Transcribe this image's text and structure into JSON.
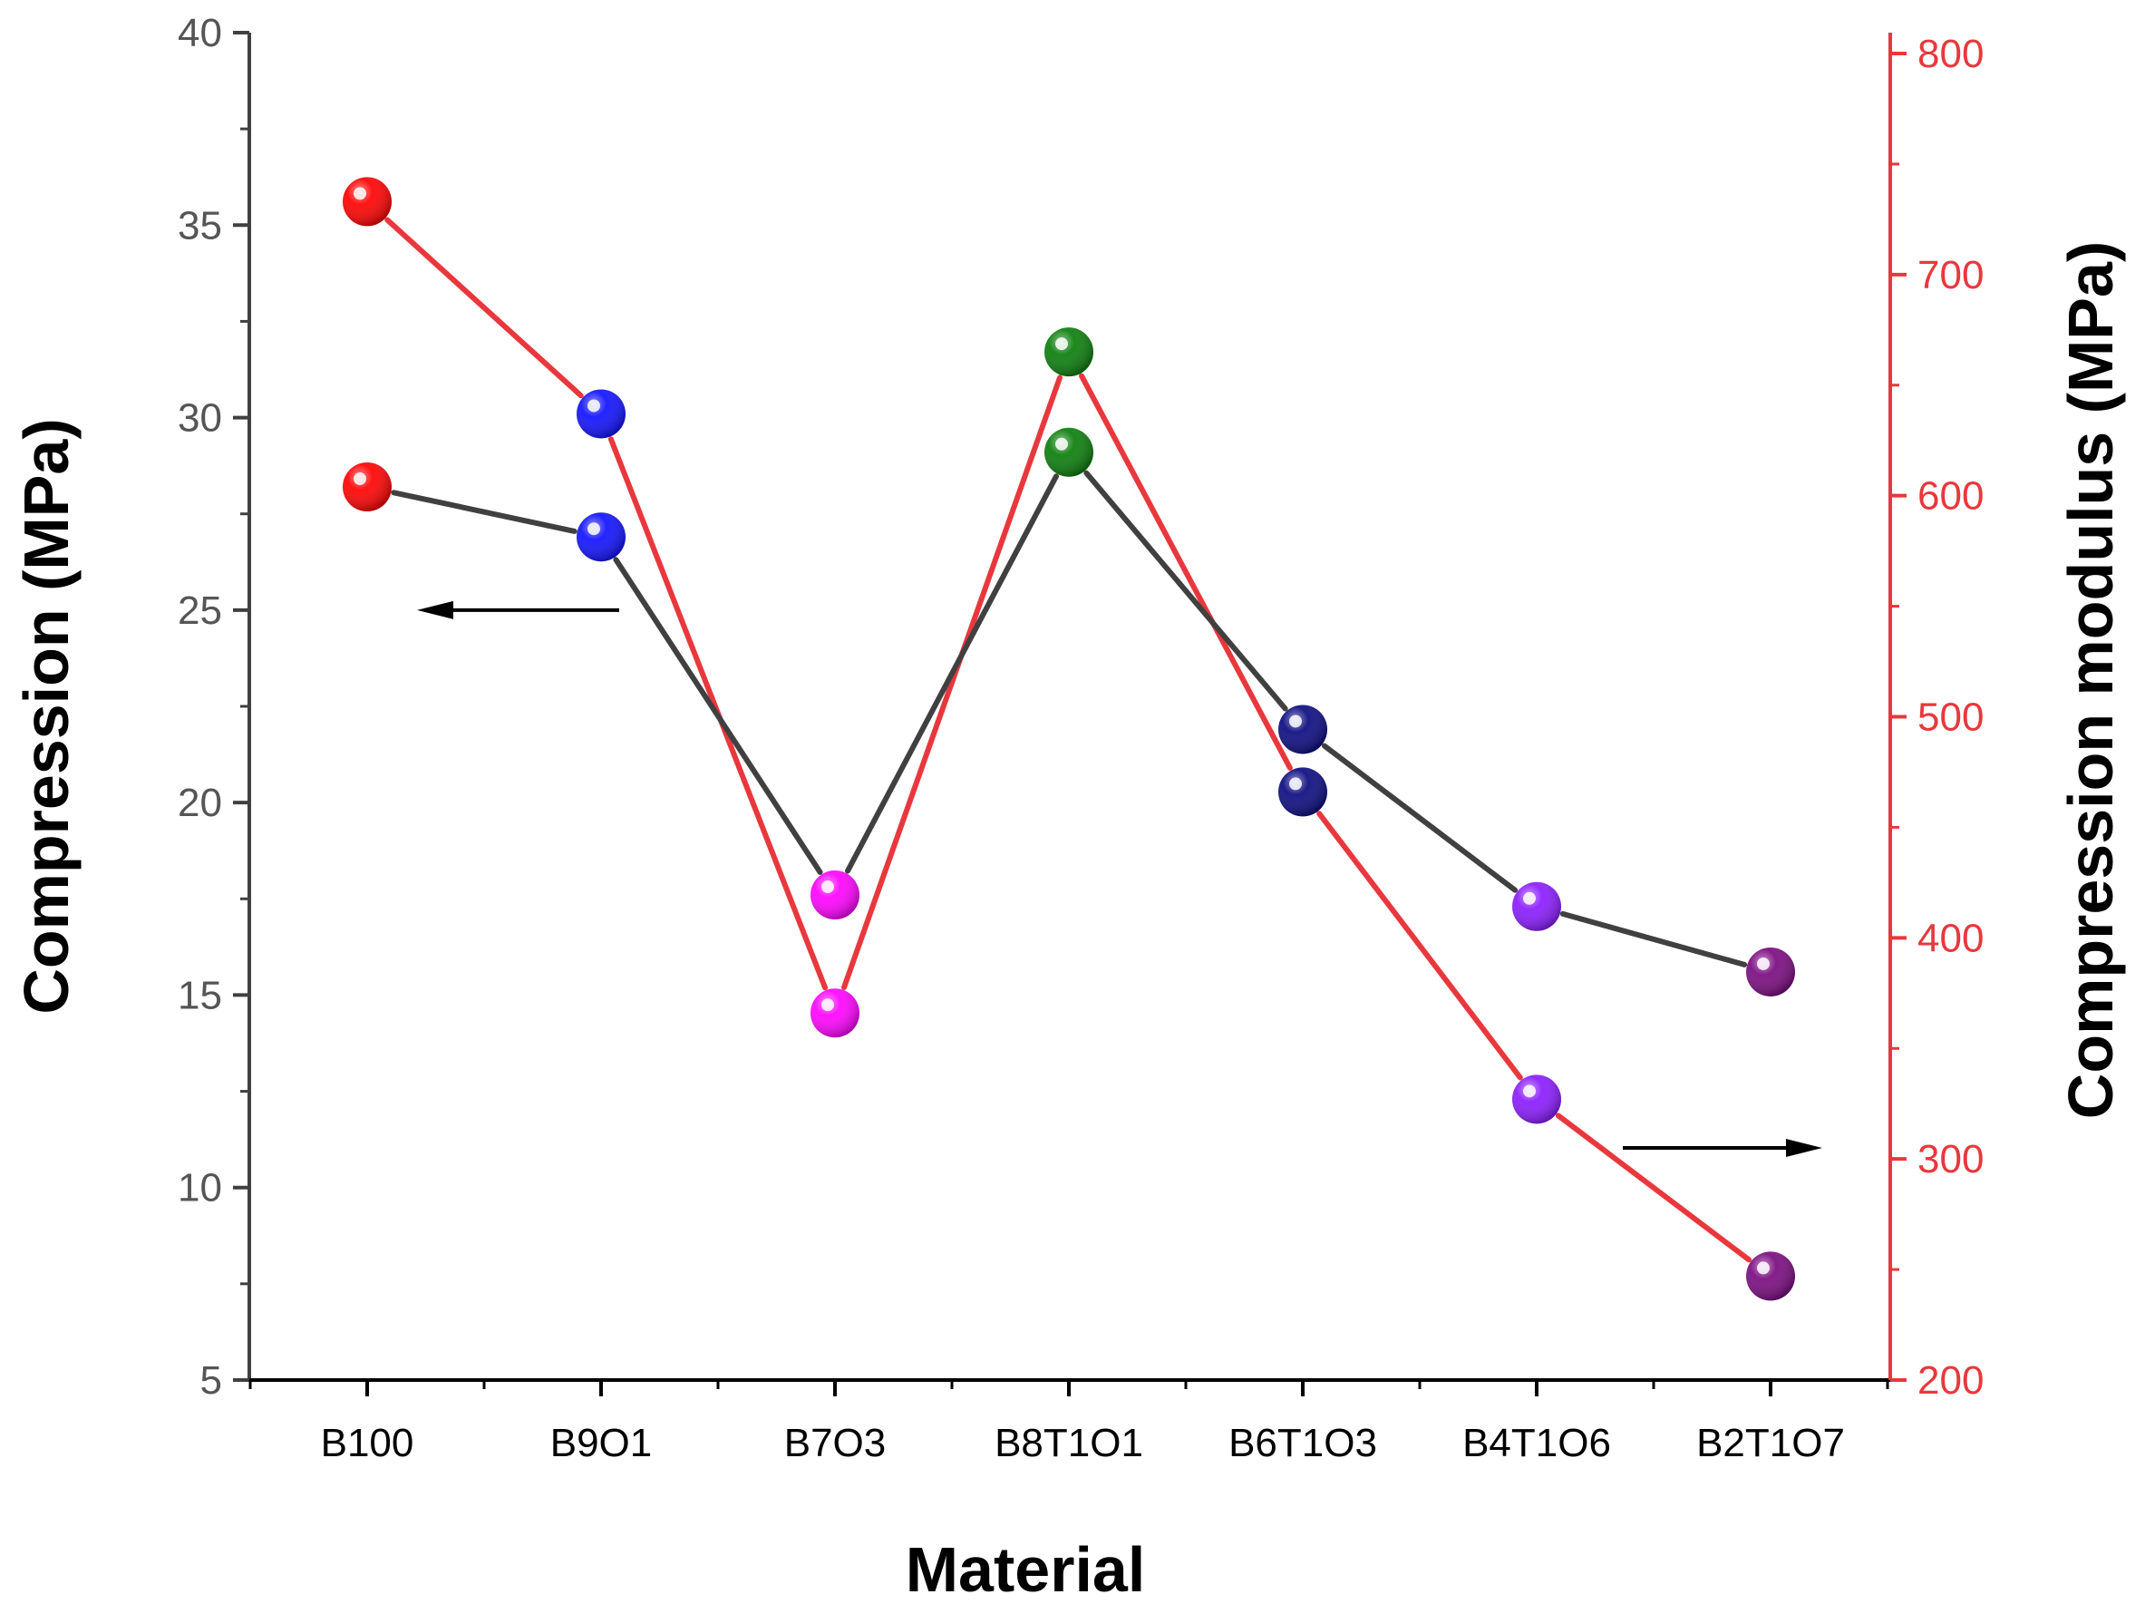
{
  "chart_data": {
    "type": "line",
    "xlabel": "Material",
    "ylabel": "Compression (MPa)",
    "y2label": "Compression modulus (MPa)",
    "categories": [
      "B100",
      "B9O1",
      "B7O3",
      "B8T1O1",
      "B6T1O3",
      "B4T1O6",
      "B2T1O7"
    ],
    "ylim": [
      5,
      40
    ],
    "y2lim": [
      200,
      800
    ],
    "yticks": [
      5,
      10,
      15,
      20,
      25,
      30,
      35,
      40
    ],
    "y2ticks": [
      200,
      300,
      400,
      500,
      600,
      700,
      800
    ],
    "grid": false,
    "series": [
      {
        "key": "compression",
        "axis": "left",
        "line_color": "#404040",
        "values": [
          28.2,
          26.9,
          17.6,
          29.1,
          21.9,
          17.3,
          15.6
        ]
      },
      {
        "key": "modulus",
        "axis": "right",
        "line_color": "#e8383d",
        "values": [
          733,
          637,
          366,
          665,
          466,
          327,
          247
        ]
      }
    ],
    "marker_colors": [
      "#ff0000",
      "#1010ff",
      "#ff00ff",
      "#0a7d0a",
      "#0a0a80",
      "#8a1aff",
      "#7a0a80"
    ],
    "axis_colors": {
      "left": "#404040",
      "right": "#e8383d"
    },
    "arrows": [
      {
        "points_to": "left",
        "series": "compression"
      },
      {
        "points_to": "right",
        "series": "modulus"
      }
    ]
  }
}
